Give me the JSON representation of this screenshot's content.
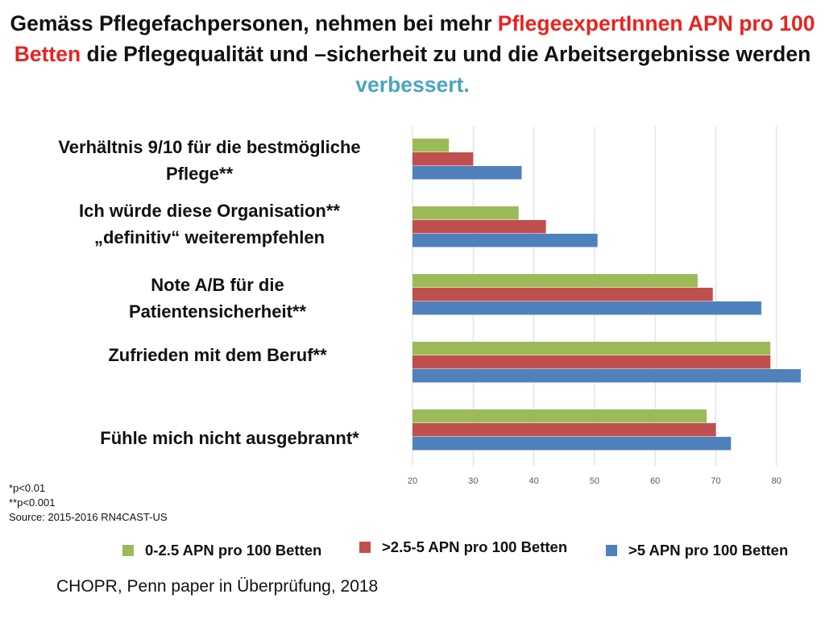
{
  "title": {
    "part1": "Gemäss Pflegefachpersonen, nehmen bei mehr ",
    "part2": "PflegeexpertInnen APN pro 100 Betten",
    "part3": " die Pflegequalität und –sicherheit zu und die Arbeitsergebnisse werden ",
    "part4": "verbessert."
  },
  "chart_data": {
    "type": "bar",
    "orientation": "horizontal",
    "categories": [
      "Verhältnis 9/10 für die bestmögliche Pflege**",
      "Ich würde diese Organisation** „definitiv“ weiterempfehlen",
      "Note A/B für die Patientensicherheit**",
      "Zufrieden mit dem Beruf**",
      "Fühle mich nicht ausgebrannt*"
    ],
    "series": [
      {
        "name": "0-2.5 APN pro 100 Betten",
        "color": "#9bbb59",
        "values": [
          26,
          37.5,
          67,
          79,
          68.5
        ]
      },
      {
        "name": ">2.5-5 APN pro 100 Betten",
        "color": "#c0504d",
        "values": [
          30,
          42,
          69.5,
          79,
          70
        ]
      },
      {
        "name": ">5 APN pro 100 Betten",
        "color": "#4f81bd",
        "values": [
          38,
          50.5,
          77.5,
          84,
          72.5
        ]
      }
    ],
    "xlim": [
      20,
      84
    ],
    "xticks": [
      "20",
      "30",
      "40",
      "50",
      "60",
      "70",
      "80"
    ],
    "grid": true,
    "legend_position": "bottom"
  },
  "category_lines": [
    [
      "Verhältnis 9/10 für die bestmögliche",
      "Pflege**"
    ],
    [
      "Ich würde diese Organisation**",
      "„definitiv“ weiterempfehlen"
    ],
    [
      "Note A/B für die",
      "Patientensicherheit**"
    ],
    [
      "Zufrieden mit dem Beruf**"
    ],
    [
      "Fühle mich nicht ausgebrannt*"
    ]
  ],
  "notes": [
    "*p<0.01",
    "**p<0.001",
    "Source: 2015-2016 RN4CAST-US"
  ],
  "source": "CHOPR, Penn paper in Überprüfung, 2018"
}
